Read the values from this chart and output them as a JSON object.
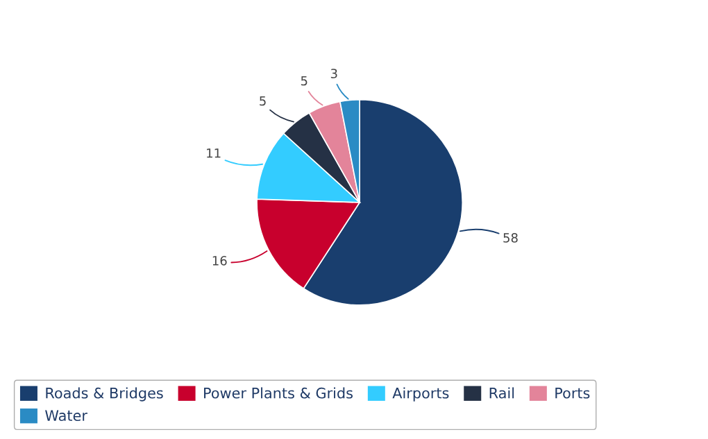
{
  "chart_data": {
    "type": "pie",
    "categories": [
      "Roads & Bridges",
      "Power Plants & Grids",
      "Airports",
      "Rail",
      "Ports",
      "Water"
    ],
    "values": [
      58,
      16,
      11,
      5,
      5,
      3
    ],
    "colors": [
      "#193e6e",
      "#c8002d",
      "#33ccff",
      "#253145",
      "#e3849a",
      "#2a8bc4"
    ],
    "data_labels": true,
    "legend": "bottom"
  }
}
